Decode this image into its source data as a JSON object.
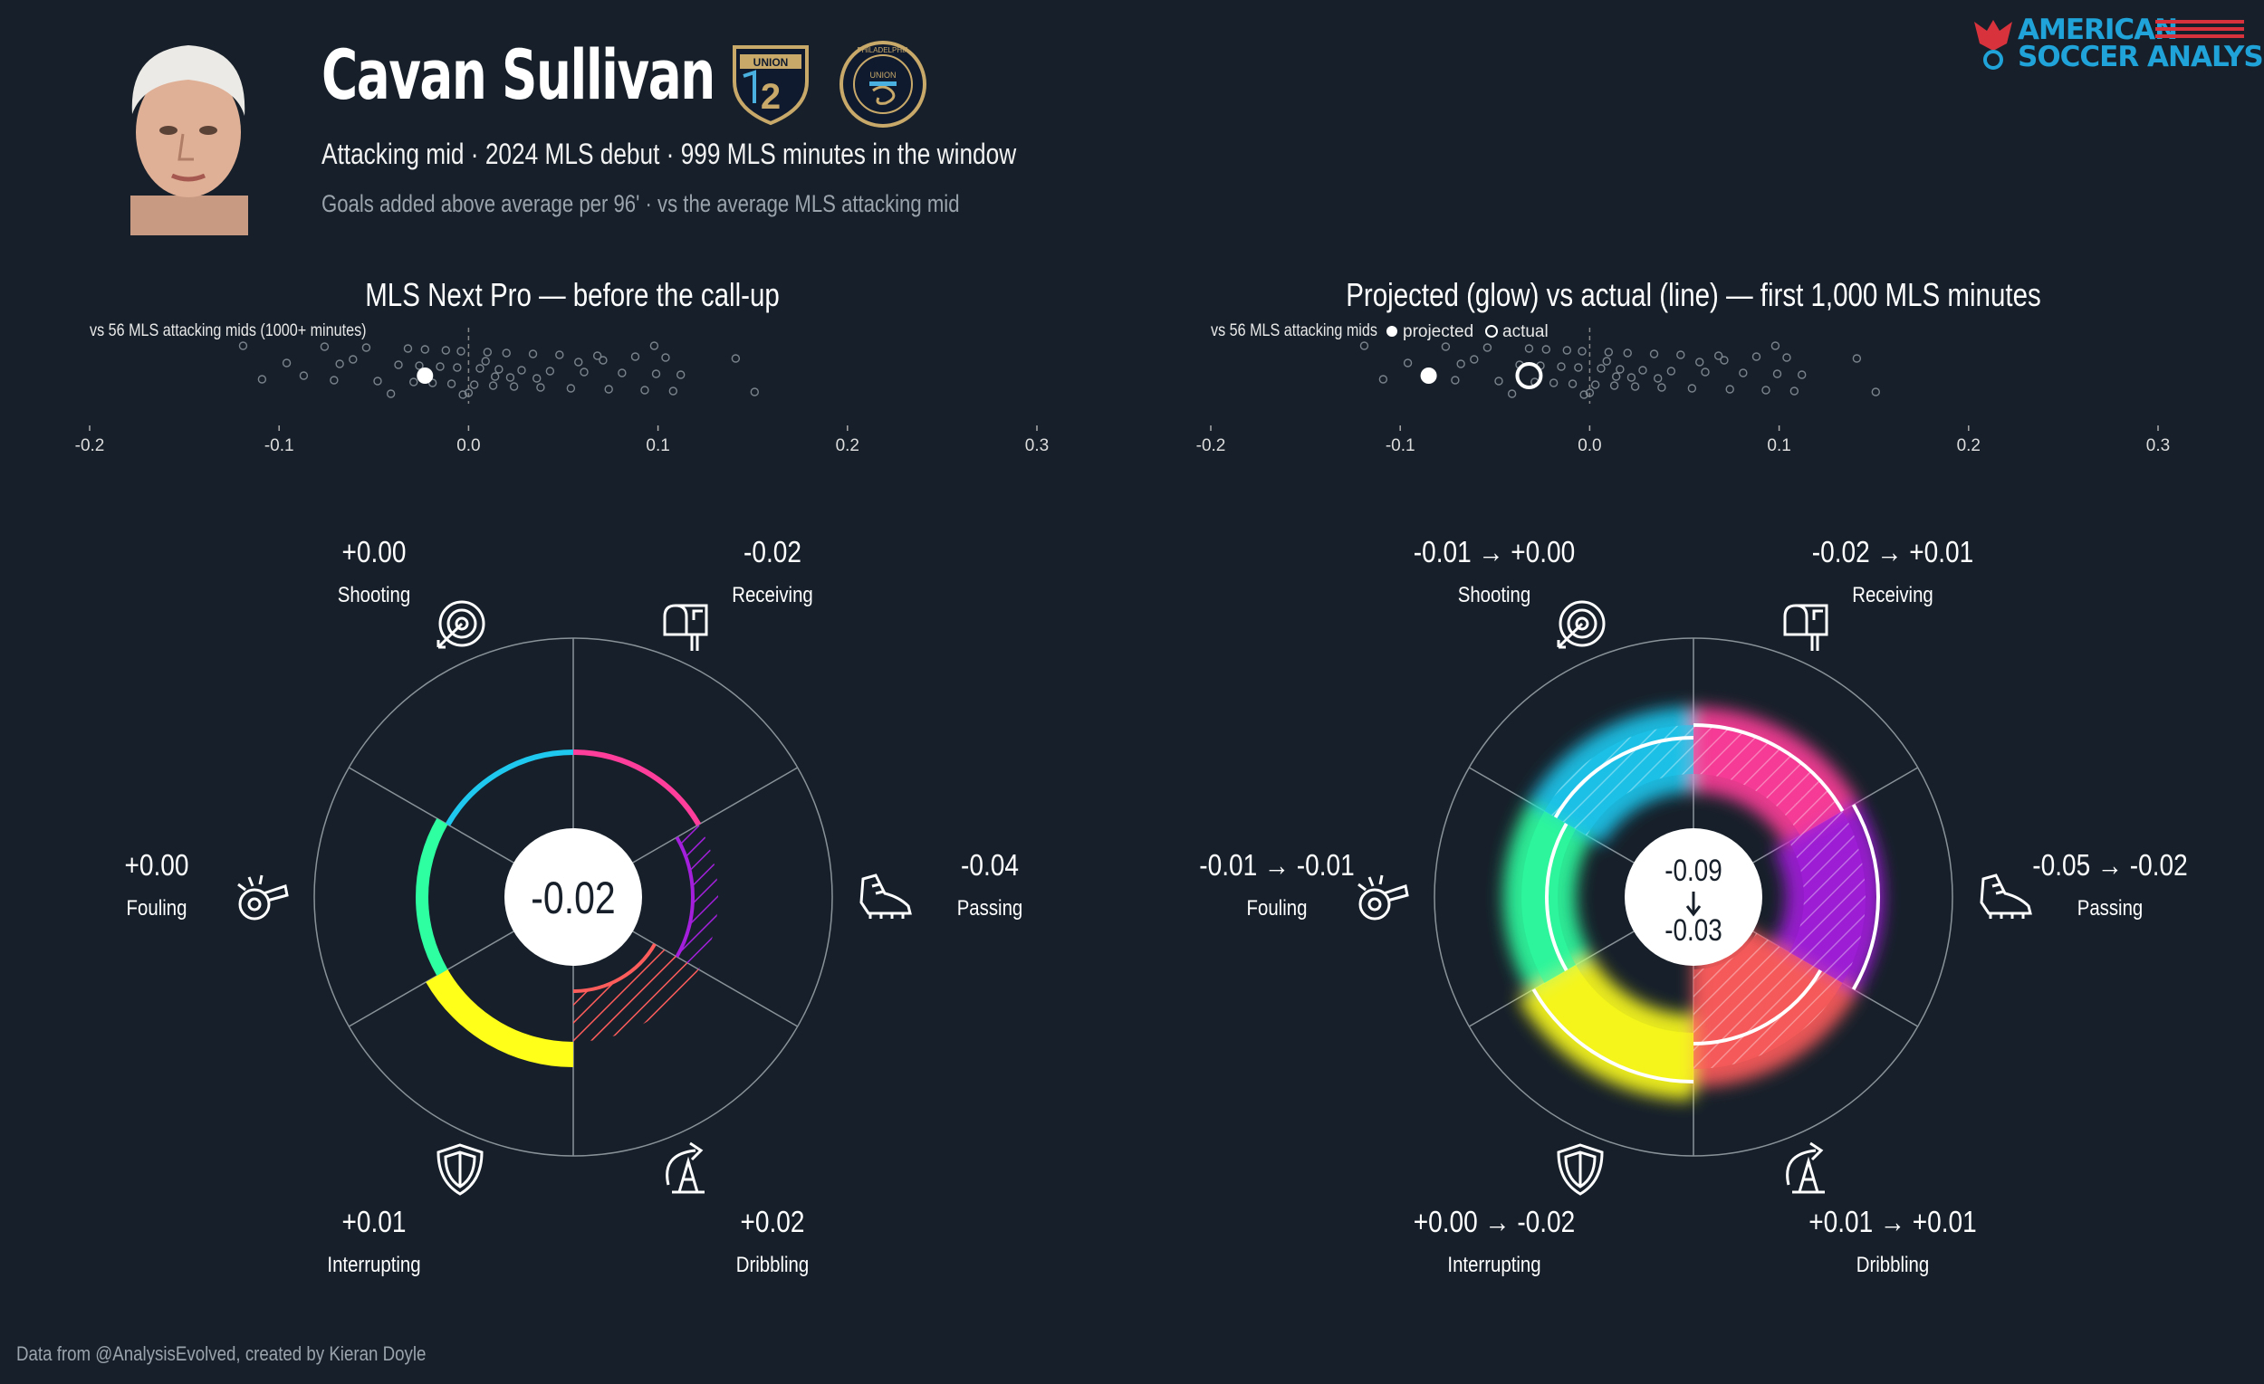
{
  "header": {
    "player_name": "Cavan Sullivan",
    "subtitle": "Attacking mid · 2024 MLS debut · 999 MLS minutes in the window",
    "metric_note": "Goals added above average per 96' · vs the average MLS attacking mid",
    "club_badges": [
      "union-2-badge",
      "philadelphia-union-badge"
    ],
    "club_badge_text": [
      "UNION",
      "2",
      "PHILADELPHIA",
      "UNION"
    ]
  },
  "brand": {
    "line1": "AMERICAN",
    "line2": "SOCCER ANALYSIS",
    "color": "#1fa3d8",
    "accent": "#d8323c"
  },
  "footer": {
    "credit": "Data from @AnalysisEvolved, created by Kieran Doyle"
  },
  "colors": {
    "background": "#17202a",
    "Shooting": "#ff3d9a",
    "Passing": "#ff5c5c",
    "Dribbling": "#ffff1a",
    "Interrupting": "#2effa0",
    "Fouling": "#1ec8ef",
    "Receiving": "#a31fdc"
  },
  "chart_data": [
    {
      "type": "scatter",
      "title": "MLS Next Pro — before the call-up",
      "note": "vs 56 MLS attacking mids (1000+ minutes)",
      "xlim": [
        -0.2,
        0.3
      ],
      "xticks": [
        -0.2,
        -0.1,
        0.0,
        0.1,
        0.2,
        0.3
      ],
      "tick_labels": [
        "-0.2",
        "-0.1",
        "0.0",
        "0.1",
        "0.2",
        "0.3"
      ],
      "reference_x": 0.0,
      "population": [
        -0.119,
        -0.109,
        -0.096,
        -0.076,
        -0.071,
        -0.068,
        -0.054,
        -0.048,
        -0.037,
        -0.032,
        -0.029,
        -0.026,
        -0.023,
        -0.019,
        -0.015,
        -0.012,
        -0.009,
        -0.006,
        -0.004,
        0.003,
        0.006,
        0.01,
        0.013,
        0.016,
        0.02,
        0.024,
        0.028,
        0.034,
        0.038,
        0.043,
        0.048,
        0.054,
        0.061,
        0.068,
        0.074,
        0.081,
        0.088,
        0.093,
        0.099,
        0.104,
        0.108,
        0.112,
        0.141,
        0.151,
        -0.087,
        -0.061,
        0.0,
        0.014,
        0.071,
        -0.041,
        0.022,
        0.009,
        -0.003,
        0.036,
        0.058,
        0.098
      ],
      "player_value": -0.023
    },
    {
      "type": "scatter",
      "title": "Projected (glow) vs actual (line) — first 1,000 MLS minutes",
      "note": "vs 56 MLS attacking mids",
      "legend": [
        "projected",
        "actual"
      ],
      "xlim": [
        -0.2,
        0.3
      ],
      "xticks": [
        -0.2,
        -0.1,
        0.0,
        0.1,
        0.2,
        0.3
      ],
      "tick_labels": [
        "-0.2",
        "-0.1",
        "0.0",
        "0.1",
        "0.2",
        "0.3"
      ],
      "reference_x": 0.0,
      "population": [
        -0.119,
        -0.109,
        -0.096,
        -0.076,
        -0.071,
        -0.068,
        -0.054,
        -0.048,
        -0.037,
        -0.032,
        -0.029,
        -0.026,
        -0.023,
        -0.019,
        -0.015,
        -0.012,
        -0.009,
        -0.006,
        -0.004,
        0.003,
        0.006,
        0.01,
        0.013,
        0.016,
        0.02,
        0.024,
        0.028,
        0.034,
        0.038,
        0.043,
        0.048,
        0.054,
        0.061,
        0.068,
        0.074,
        0.081,
        0.088,
        0.093,
        0.099,
        0.104,
        0.108,
        0.112,
        0.141,
        0.151,
        -0.087,
        -0.061,
        0.0,
        0.014,
        0.071,
        -0.041,
        0.022,
        0.009,
        -0.003,
        0.036,
        0.058,
        0.098
      ],
      "projected_value": -0.085,
      "actual_value": -0.032
    },
    {
      "type": "radial",
      "title": "",
      "total": "-0.02",
      "categories": [
        {
          "name": "Shooting",
          "label": "+0.00",
          "value": 0.0,
          "icon": "target-icon"
        },
        {
          "name": "Receiving",
          "label": "-0.02",
          "value": -0.02,
          "icon": "mailbox-icon"
        },
        {
          "name": "Passing",
          "label": "-0.04",
          "value": -0.04,
          "icon": "boot-icon"
        },
        {
          "name": "Dribbling",
          "label": "+0.02",
          "value": 0.02,
          "icon": "cone-icon"
        },
        {
          "name": "Interrupting",
          "label": "+0.01",
          "value": 0.01,
          "icon": "shield-icon"
        },
        {
          "name": "Fouling",
          "label": "+0.00",
          "value": 0.0,
          "icon": "whistle-icon"
        }
      ]
    },
    {
      "type": "radial",
      "title": "",
      "total_projected": "-0.09",
      "total_actual": "-0.03",
      "categories": [
        {
          "name": "Shooting",
          "label": "-0.01 → +0.00",
          "projected": -0.01,
          "actual": 0.0,
          "icon": "target-icon"
        },
        {
          "name": "Receiving",
          "label": "-0.02 → +0.01",
          "projected": -0.02,
          "actual": 0.01,
          "icon": "mailbox-icon"
        },
        {
          "name": "Passing",
          "label": "-0.05 → -0.02",
          "projected": -0.05,
          "actual": -0.02,
          "icon": "boot-icon"
        },
        {
          "name": "Dribbling",
          "label": "+0.01 → +0.01",
          "projected": 0.01,
          "actual": 0.01,
          "icon": "cone-icon"
        },
        {
          "name": "Interrupting",
          "label": "+0.00 → -0.02",
          "projected": 0.0,
          "actual": -0.02,
          "icon": "shield-icon"
        },
        {
          "name": "Fouling",
          "label": "-0.01 → -0.01",
          "projected": -0.01,
          "actual": -0.01,
          "icon": "whistle-icon"
        }
      ]
    }
  ]
}
